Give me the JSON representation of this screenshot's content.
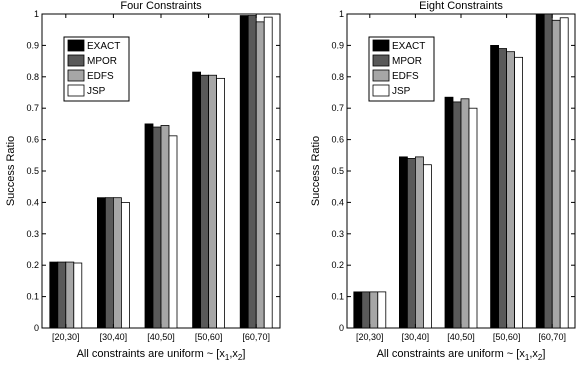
{
  "chart_data": [
    {
      "type": "bar",
      "title": "Four Constraints",
      "xlabel": {
        "main": "All constraints are uniform ~ [x",
        "sub1": "1",
        "sep": ",x",
        "sub2": "2",
        "close": "]"
      },
      "ylabel": "Success Ratio",
      "ylim": [
        0,
        1
      ],
      "yticks": [
        "0",
        "0.1",
        "0.2",
        "0.3",
        "0.4",
        "0.5",
        "0.6",
        "0.7",
        "0.8",
        "0.9",
        "1"
      ],
      "categories": [
        "[20,30]",
        "[30,40]",
        "[40,50]",
        "[50,60]",
        "[60,70]"
      ],
      "legend_position": "top-left",
      "series": [
        {
          "name": "EXACT",
          "color": "#000000",
          "values": [
            0.21,
            0.415,
            0.65,
            0.815,
            0.995
          ]
        },
        {
          "name": "MPOR",
          "color": "#595959",
          "values": [
            0.21,
            0.415,
            0.64,
            0.805,
            0.995
          ]
        },
        {
          "name": "EDFS",
          "color": "#a6a6a6",
          "values": [
            0.21,
            0.415,
            0.645,
            0.805,
            0.975
          ]
        },
        {
          "name": "JSP",
          "color": "#ffffff",
          "values": [
            0.207,
            0.4,
            0.612,
            0.795,
            0.99
          ]
        }
      ]
    },
    {
      "type": "bar",
      "title": "Eight Constraints",
      "xlabel": {
        "main": "All constraints are uniform ~ [x",
        "sub1": "1",
        "sep": ",x",
        "sub2": "2",
        "close": "]"
      },
      "ylabel": "Success Ratio",
      "ylim": [
        0,
        1
      ],
      "yticks": [
        "0",
        "0.1",
        "0.2",
        "0.3",
        "0.4",
        "0.5",
        "0.6",
        "0.7",
        "0.8",
        "0.9",
        "1"
      ],
      "categories": [
        "[20,30]",
        "[30,40]",
        "[40,50]",
        "[50,60]",
        "[60,70]"
      ],
      "legend_position": "top-left",
      "series": [
        {
          "name": "EXACT",
          "color": "#000000",
          "values": [
            0.115,
            0.545,
            0.735,
            0.9,
            1.0
          ]
        },
        {
          "name": "MPOR",
          "color": "#595959",
          "values": [
            0.115,
            0.54,
            0.72,
            0.89,
            1.0
          ]
        },
        {
          "name": "EDFS",
          "color": "#a6a6a6",
          "values": [
            0.115,
            0.545,
            0.73,
            0.88,
            0.98
          ]
        },
        {
          "name": "JSP",
          "color": "#ffffff",
          "values": [
            0.115,
            0.52,
            0.7,
            0.862,
            0.988
          ]
        }
      ]
    }
  ]
}
